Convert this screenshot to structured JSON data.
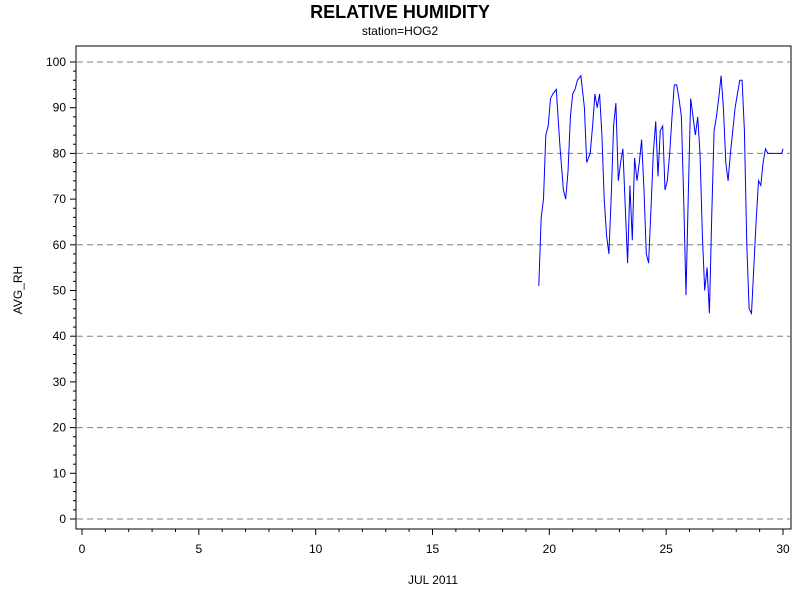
{
  "chart_data": {
    "type": "line",
    "title": "RELATIVE HUMIDITY",
    "subtitle": "station=HOG2",
    "xlabel": "JUL 2011",
    "ylabel": "AVG_RH",
    "xlim": [
      0,
      30
    ],
    "ylim": [
      0,
      100
    ],
    "x_ticks": [
      0,
      5,
      10,
      15,
      20,
      25,
      30
    ],
    "x_tick_labels": [
      "0",
      "5",
      "10",
      "15",
      "20",
      "25",
      "30"
    ],
    "y_ticks": [
      0,
      10,
      20,
      30,
      40,
      50,
      60,
      70,
      80,
      90,
      100
    ],
    "y_tick_labels": [
      "0",
      "10",
      "20",
      "30",
      "40",
      "50",
      "60",
      "70",
      "80",
      "90",
      "100"
    ],
    "y_gridlines": [
      0,
      20,
      40,
      60,
      80,
      100
    ],
    "grid": "horizontal dashed at 20-unit intervals",
    "line_color": "#0000ff",
    "gridline_color": "#808080",
    "series": [
      {
        "x": [
          19.55,
          19.65,
          19.75,
          19.85,
          19.95,
          20.05,
          20.15,
          20.3,
          20.45,
          20.6,
          20.7,
          20.8,
          20.9,
          21.0,
          21.1,
          21.2,
          21.35,
          21.5,
          21.6,
          21.75,
          21.85,
          21.95,
          22.05,
          22.15,
          22.25,
          22.35,
          22.45,
          22.55,
          22.65,
          22.75,
          22.85,
          22.95,
          23.05,
          23.15,
          23.25,
          23.35,
          23.45,
          23.55,
          23.65,
          23.75,
          23.85,
          23.95,
          24.05,
          24.15,
          24.25,
          24.35,
          24.45,
          24.55,
          24.65,
          24.75,
          24.85,
          24.95,
          25.05,
          25.15,
          25.25,
          25.35,
          25.45,
          25.55,
          25.65,
          25.75,
          25.85,
          25.95,
          26.05,
          26.15,
          26.25,
          26.35,
          26.45,
          26.55,
          26.65,
          26.75,
          26.85,
          26.95,
          27.05,
          27.15,
          27.25,
          27.35,
          27.45,
          27.55,
          27.65,
          27.75,
          27.85,
          27.95,
          28.05,
          28.15,
          28.25,
          28.35,
          28.45,
          28.55,
          28.65,
          28.75,
          28.85,
          28.95,
          29.05,
          29.15,
          29.25,
          29.35,
          29.45,
          29.55,
          29.65,
          29.75,
          29.85,
          29.95,
          30.0
        ],
        "y": [
          51,
          66,
          70,
          84,
          86,
          92,
          93,
          94,
          82,
          72,
          70,
          76,
          88,
          93,
          94,
          96,
          97,
          90,
          78,
          80,
          86,
          93,
          90,
          93,
          84,
          70,
          62,
          58,
          71,
          86,
          91,
          74,
          78,
          81,
          68,
          56,
          73,
          61,
          79,
          74,
          78,
          83,
          72,
          58,
          56,
          68,
          80,
          87,
          75,
          85,
          86,
          72,
          74,
          80,
          88,
          95,
          95,
          92,
          88,
          70,
          49,
          72,
          92,
          88,
          84,
          88,
          80,
          62,
          50,
          55,
          45,
          66,
          85,
          88,
          92,
          97,
          90,
          78,
          74,
          80,
          85,
          90,
          93,
          96,
          96,
          85,
          60,
          46,
          45,
          55,
          65,
          74,
          73,
          78,
          81,
          80,
          80,
          80,
          80,
          80,
          80,
          80,
          81
        ]
      }
    ]
  }
}
